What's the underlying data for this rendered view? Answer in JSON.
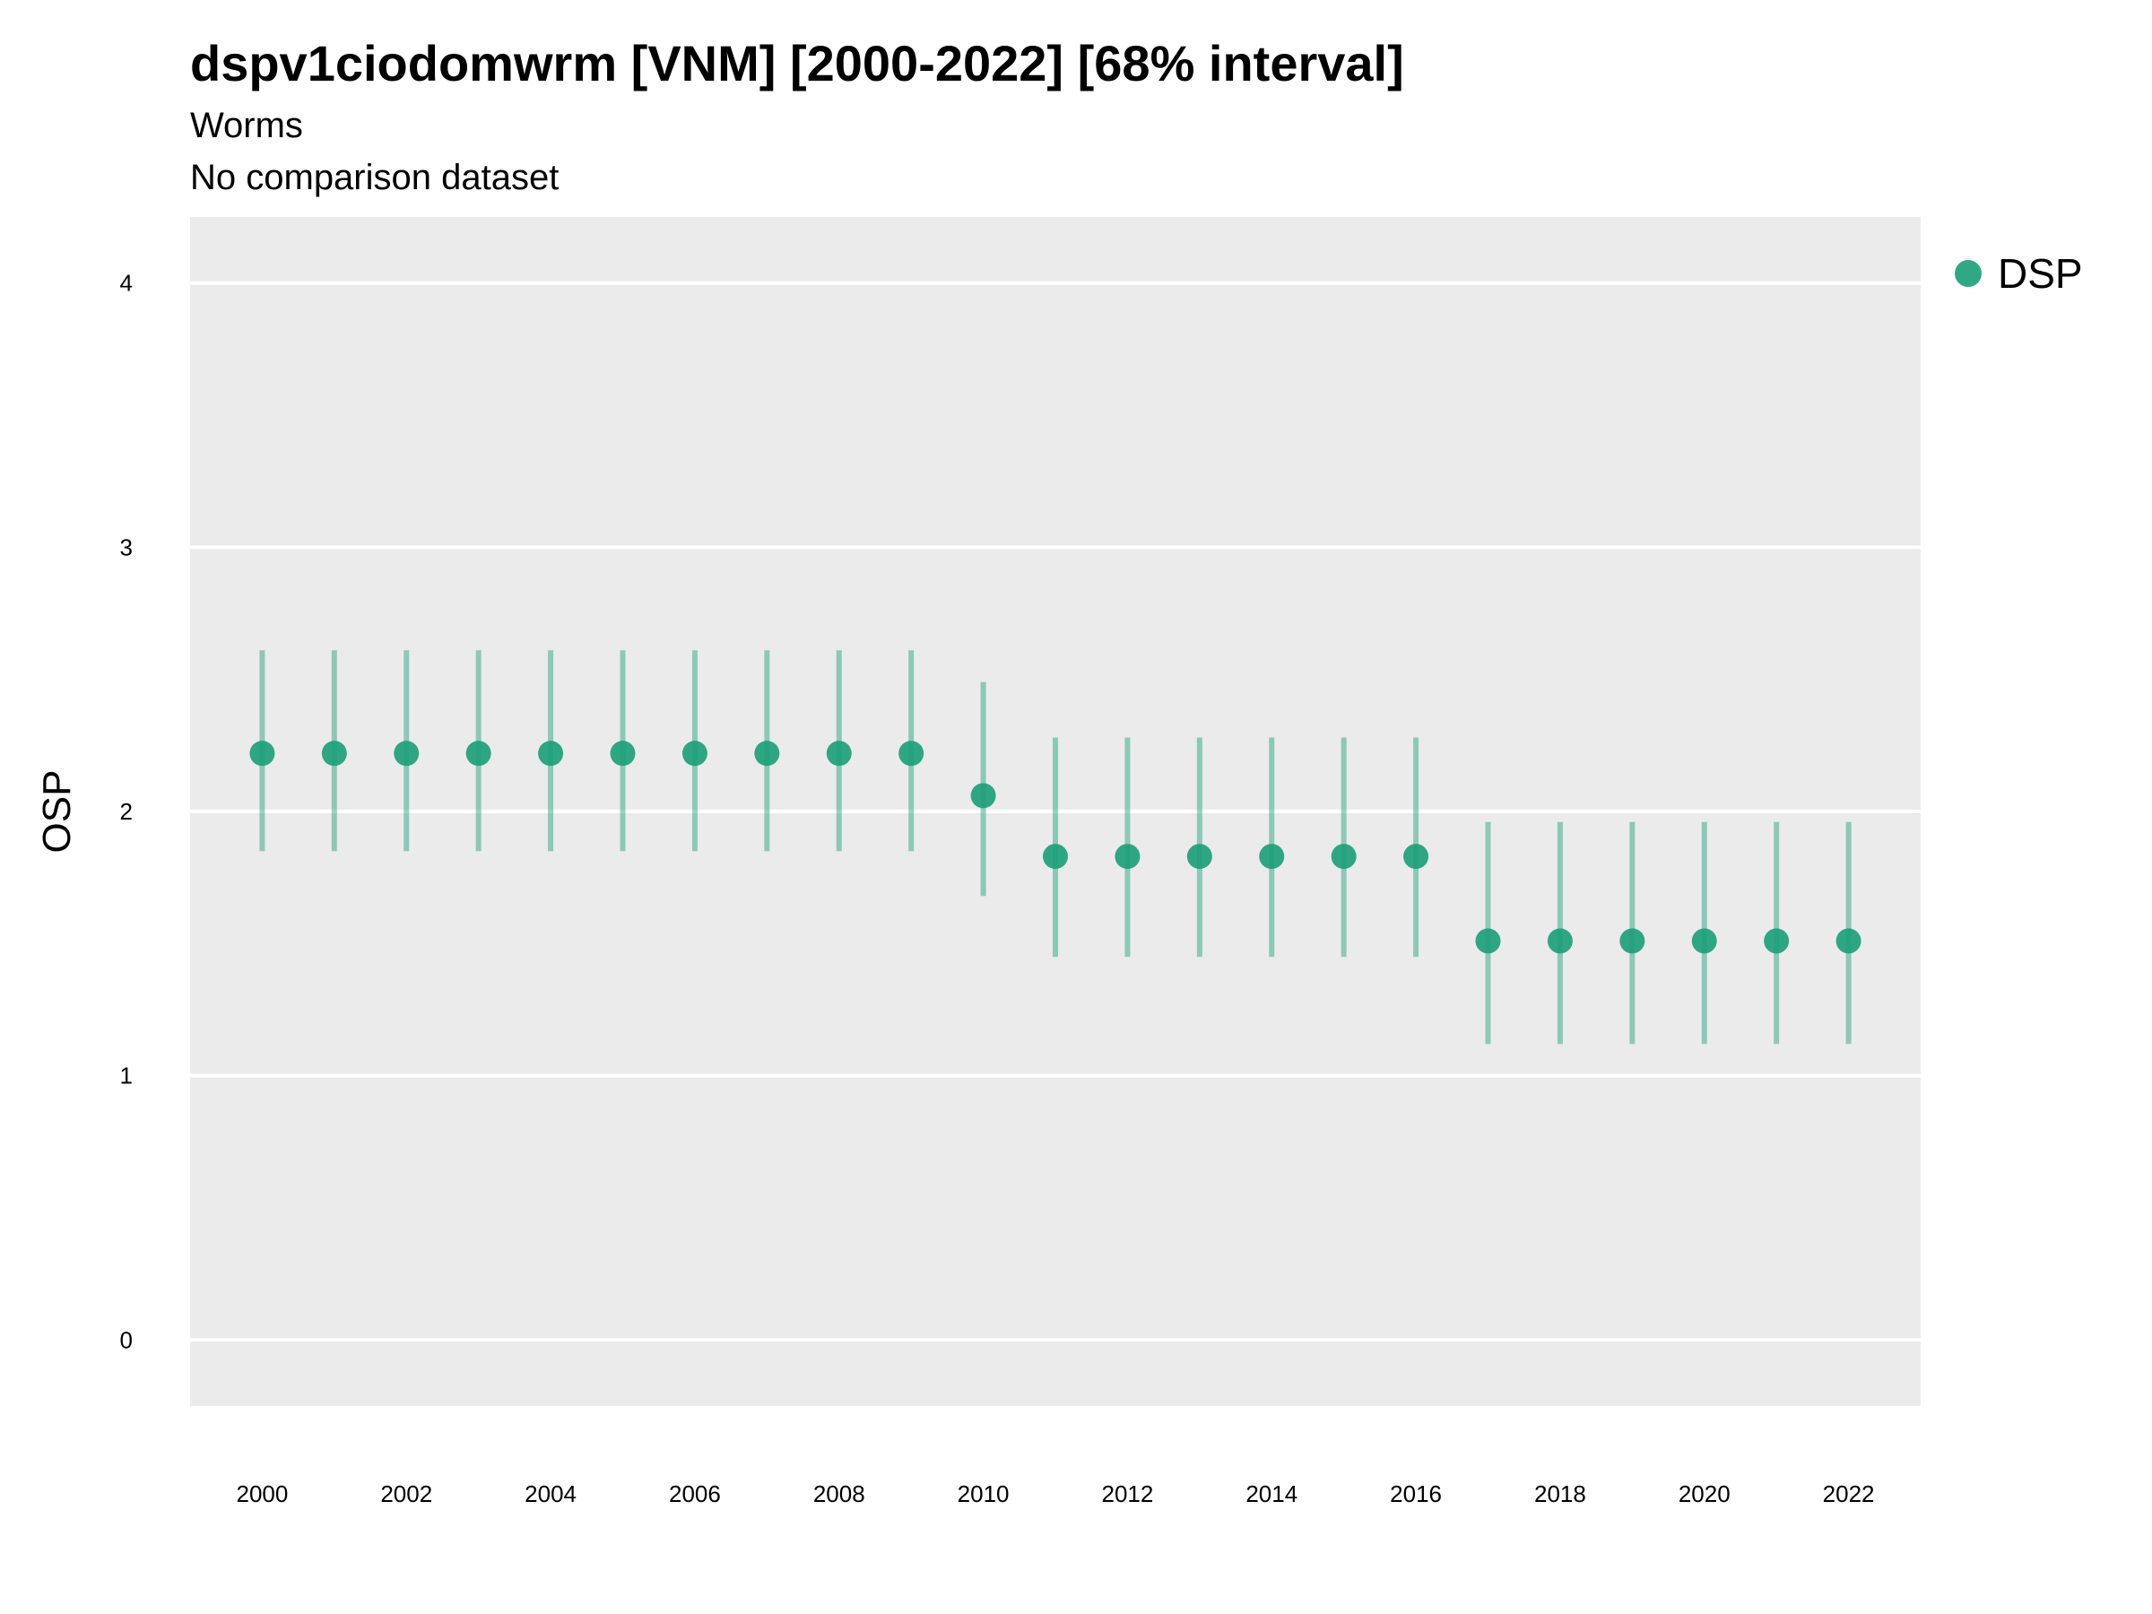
{
  "title": "dspv1ciodomwrm [VNM] [2000-2022] [68% interval]",
  "subtitle": "Worms",
  "caption": "No comparison dataset",
  "colors": {
    "panel": "#ebebeb",
    "grid": "#ffffff",
    "series": "#1b9e77"
  },
  "legend": {
    "position": "right",
    "items": [
      {
        "label": "DSP",
        "color": "#1b9e77"
      }
    ]
  },
  "chart_data": {
    "type": "scatter",
    "title": "dspv1ciodomwrm [VNM] [2000-2022] [68% interval]",
    "xlabel": "",
    "ylabel": "OSP",
    "ylim": [
      -0.25,
      4.25
    ],
    "xlim": [
      1999,
      2023
    ],
    "yticks": [
      0,
      1,
      2,
      3,
      4
    ],
    "xticks": [
      2000,
      2002,
      2004,
      2006,
      2008,
      2010,
      2012,
      2014,
      2016,
      2018,
      2020,
      2022
    ],
    "grid": true,
    "series": [
      {
        "name": "DSP",
        "x": [
          2000,
          2001,
          2002,
          2003,
          2004,
          2005,
          2006,
          2007,
          2008,
          2009,
          2010,
          2011,
          2012,
          2013,
          2014,
          2015,
          2016,
          2017,
          2018,
          2019,
          2020,
          2021,
          2022
        ],
        "y": [
          2.22,
          2.22,
          2.22,
          2.22,
          2.22,
          2.22,
          2.22,
          2.22,
          2.22,
          2.22,
          2.06,
          1.83,
          1.83,
          1.83,
          1.83,
          1.83,
          1.83,
          1.51,
          1.51,
          1.51,
          1.51,
          1.51,
          1.51
        ],
        "lower": [
          1.85,
          1.85,
          1.85,
          1.85,
          1.85,
          1.85,
          1.85,
          1.85,
          1.85,
          1.85,
          1.68,
          1.45,
          1.45,
          1.45,
          1.45,
          1.45,
          1.45,
          1.12,
          1.12,
          1.12,
          1.12,
          1.12,
          1.12
        ],
        "upper": [
          2.61,
          2.61,
          2.61,
          2.61,
          2.61,
          2.61,
          2.61,
          2.61,
          2.61,
          2.61,
          2.49,
          2.28,
          2.28,
          2.28,
          2.28,
          2.28,
          2.28,
          1.96,
          1.96,
          1.96,
          1.96,
          1.96,
          1.96
        ]
      }
    ]
  }
}
